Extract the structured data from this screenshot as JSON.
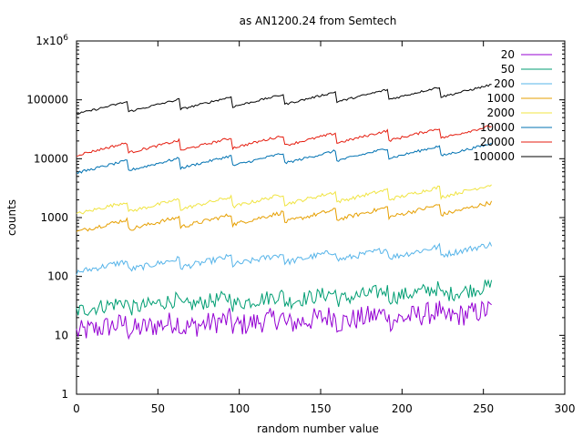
{
  "chart_data": {
    "type": "line",
    "title": "as AN1200.24 from Semtech",
    "xlabel": "random number value",
    "ylabel": "counts",
    "xlim": [
      0,
      300
    ],
    "ylim": [
      1,
      1000000
    ],
    "yscale": "log",
    "grid": false,
    "legend_position": "top-right",
    "x_ticks": [
      0,
      50,
      100,
      150,
      200,
      250,
      300
    ],
    "x_tick_labels": [
      "0",
      "50",
      "100",
      "150",
      "200",
      "250",
      "300"
    ],
    "y_ticks": [
      1,
      10,
      100,
      1000,
      10000,
      100000,
      1000000
    ],
    "y_tick_labels": [
      "1",
      "10",
      "100",
      "1000",
      "10000",
      "100000",
      "1x10^6"
    ],
    "x_range": [
      0,
      255
    ],
    "series": [
      {
        "name": "20",
        "color": "#9400d3",
        "approx_start": 13,
        "approx_end": 24,
        "period": 32,
        "amplitude": 0.3,
        "noise": 0.45
      },
      {
        "name": "50",
        "color": "#009e73",
        "approx_start": 30,
        "approx_end": 60,
        "period": 32,
        "amplitude": 0.3,
        "noise": 0.3
      },
      {
        "name": "200",
        "color": "#56b4e9",
        "approx_start": 140,
        "approx_end": 300,
        "period": 32,
        "amplitude": 0.35,
        "noise": 0.12
      },
      {
        "name": "1000",
        "color": "#e69f00",
        "approx_start": 700,
        "approx_end": 1500,
        "period": 32,
        "amplitude": 0.4,
        "noise": 0.08
      },
      {
        "name": "2000",
        "color": "#f0e442",
        "approx_start": 1400,
        "approx_end": 3000,
        "period": 32,
        "amplitude": 0.4,
        "noise": 0.07
      },
      {
        "name": "10000",
        "color": "#0072b2",
        "approx_start": 7000,
        "approx_end": 15000,
        "period": 32,
        "amplitude": 0.4,
        "noise": 0.05
      },
      {
        "name": "20000",
        "color": "#e51e10",
        "approx_start": 14000,
        "approx_end": 30000,
        "period": 32,
        "amplitude": 0.4,
        "noise": 0.05
      },
      {
        "name": "100000",
        "color": "#000000",
        "approx_start": 70000,
        "approx_end": 150000,
        "period": 32,
        "amplitude": 0.4,
        "noise": 0.04
      }
    ]
  }
}
